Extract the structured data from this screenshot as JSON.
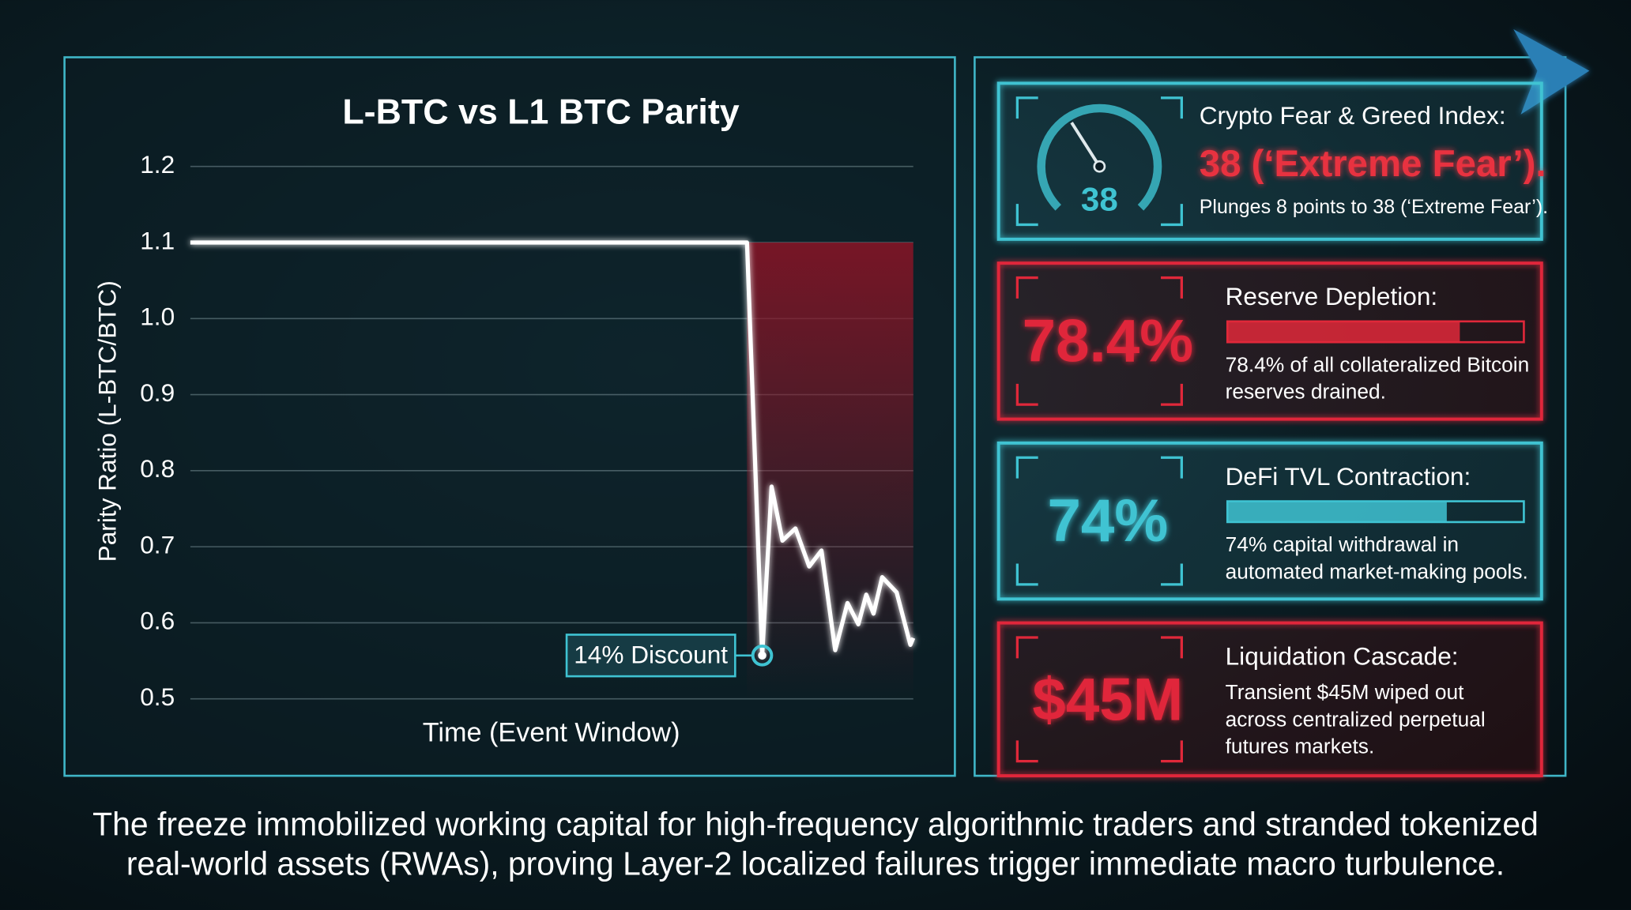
{
  "chart_data": {
    "type": "line",
    "title": "L-BTC vs L1 BTC Parity",
    "x_label": "Time (Event Window)",
    "y_label": "Parity Ratio (L-BTC/BTC)",
    "x": [
      0,
      77,
      79.1,
      80.4,
      81.9,
      83.7,
      85.6,
      87.3,
      89.2,
      90.9,
      92.4,
      93.5,
      94.5,
      95.7,
      97.7,
      99.6,
      100
    ],
    "values": [
      1.1,
      1.1,
      0.557,
      0.779,
      0.708,
      0.724,
      0.674,
      0.695,
      0.564,
      0.626,
      0.598,
      0.637,
      0.612,
      0.66,
      0.64,
      0.571,
      0.58
    ],
    "color": "#ffffff",
    "xlim": [
      0,
      100
    ],
    "ylim": [
      0.5,
      1.2
    ],
    "yticks": [
      0.5,
      0.6,
      0.7,
      0.8,
      0.9,
      {
        "value": 1,
        "label": "1.0"
      },
      1.1,
      1.2
    ],
    "grid": true,
    "annotation": "14% Discount"
  },
  "cards": [
    {
      "title": "Crypto Fear & Greed Index:",
      "headline": "38 (‘Extreme Fear’).",
      "gauge": 38,
      "gauge_lim": [
        0,
        100
      ],
      "description": [
        "Plunges 8 points to 38 (‘Extreme Fear’)."
      ],
      "color": "#3fc3d2"
    },
    {
      "title": "Reserve Depletion:",
      "headline": "78.4%",
      "bar": 78.4,
      "bar_lim": [
        0,
        100
      ],
      "description": [
        "78.4% of all collateralized Bitcoin",
        "reserves drained."
      ],
      "color": "#e0283a"
    },
    {
      "title": "DeFi TVL Contraction:",
      "headline": "74%",
      "bar": 74,
      "bar_lim": [
        0,
        100
      ],
      "description": [
        "74% capital withdrawal in",
        "automated market-making pools."
      ],
      "color": "#3fc3d2"
    },
    {
      "title": "Liquidation Cascade:",
      "headline": "$45M",
      "description": [
        "Transient $45M wiped out",
        "across centralized perpetual",
        "futures markets."
      ],
      "color": "#e0283a"
    }
  ],
  "footer": [
    "The freeze immobilized working capital for high-frequency algorithmic traders and stranded tokenized",
    "real-world assets (RWAs), proving Layer-2 localized failures trigger immediate macro turbulence."
  ]
}
